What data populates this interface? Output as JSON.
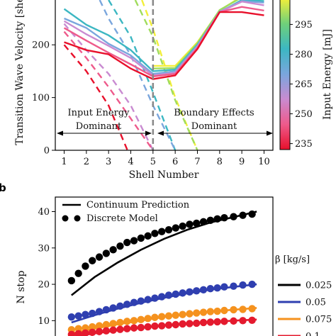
{
  "panel_b_label": "b",
  "chart_data": [
    {
      "type": "line",
      "panel": "a",
      "xlabel": "Shell Number",
      "ylabel": "Transition Wave Velocity [she",
      "x_ticks": [
        1,
        2,
        3,
        4,
        5,
        6,
        7,
        8,
        9,
        10
      ],
      "y_ticks": [
        0,
        100,
        200
      ],
      "xlim": [
        0.6,
        10.4
      ],
      "ylim": [
        0,
        285
      ],
      "divider_x": 5,
      "annotations": {
        "left": [
          "Input Energy",
          "Dominant"
        ],
        "right": [
          "Boundary Effects",
          "Dominant"
        ]
      },
      "colorbar": {
        "label": "Input Energy [mJ]",
        "ticks": [
          235,
          250,
          265,
          280,
          295
        ],
        "range": [
          232,
          308
        ],
        "stops": [
          "#e8102b",
          "#ee5a8b",
          "#c98bd1",
          "#7aa6dd",
          "#3cb7c2",
          "#6fd07a",
          "#f2ef3a"
        ]
      },
      "series_solid": [
        {
          "color": "#f2ef3a",
          "x": [
            5,
            6,
            7,
            8,
            9,
            10
          ],
          "y": [
            160,
            160,
            205,
            265,
            292,
            292
          ]
        },
        {
          "color": "#9fdc5c",
          "x": [
            5,
            6,
            7,
            8,
            9,
            10
          ],
          "y": [
            155,
            156,
            203,
            266,
            290,
            290
          ]
        },
        {
          "color": "#3cb7c2",
          "x": [
            1,
            2,
            3,
            4,
            5,
            6,
            7,
            8,
            9,
            10
          ],
          "y": [
            268,
            238,
            218,
            190,
            150,
            153,
            200,
            262,
            285,
            283
          ]
        },
        {
          "color": "#7aa6dd",
          "x": [
            1,
            2,
            3,
            4,
            5,
            6,
            7,
            8,
            9,
            10
          ],
          "y": [
            250,
            232,
            202,
            180,
            145,
            150,
            198,
            263,
            283,
            280
          ]
        },
        {
          "color": "#c98bd1",
          "x": [
            1,
            2,
            3,
            4,
            5,
            6,
            7,
            8,
            9,
            10
          ],
          "y": [
            245,
            220,
            198,
            175,
            142,
            147,
            196,
            262,
            282,
            275
          ]
        },
        {
          "color": "#ee5a8b",
          "x": [
            1,
            2,
            3,
            4,
            5,
            6,
            7,
            8,
            9,
            10
          ],
          "y": [
            232,
            208,
            185,
            163,
            140,
            145,
            194,
            262,
            272,
            265
          ]
        },
        {
          "color": "#e8102b",
          "x": [
            1,
            2,
            3,
            4,
            5,
            6,
            7,
            8,
            9,
            10
          ],
          "y": [
            205,
            190,
            182,
            155,
            135,
            142,
            192,
            262,
            262,
            256
          ]
        }
      ],
      "series_dashed": [
        {
          "color": "#f2ef3a",
          "x": [
            4.5,
            5,
            6,
            7
          ],
          "y": [
            285,
            230,
            100,
            0
          ]
        },
        {
          "color": "#9fdc5c",
          "x": [
            4.2,
            5,
            6,
            7
          ],
          "y": [
            285,
            215,
            95,
            0
          ]
        },
        {
          "color": "#3cb7c2",
          "x": [
            3,
            4,
            5,
            6
          ],
          "y": [
            285,
            215,
            110,
            0
          ]
        },
        {
          "color": "#7aa6dd",
          "x": [
            2.6,
            3,
            4,
            5,
            6
          ],
          "y": [
            285,
            250,
            180,
            85,
            0
          ]
        },
        {
          "color": "#c98bd1",
          "x": [
            1,
            2,
            3,
            4,
            5
          ],
          "y": [
            240,
            190,
            145,
            85,
            0
          ]
        },
        {
          "color": "#ee5a8b",
          "x": [
            1,
            2,
            3,
            4,
            5
          ],
          "y": [
            225,
            175,
            120,
            60,
            0
          ]
        },
        {
          "color": "#e8102b",
          "x": [
            1,
            2,
            3,
            3.85,
            4
          ],
          "y": [
            200,
            150,
            85,
            0,
            0
          ]
        }
      ]
    },
    {
      "type": "scatter",
      "panel": "b",
      "ylabel": "N stop",
      "y_ticks": [
        10,
        20,
        30,
        40
      ],
      "ylim": [
        5,
        44
      ],
      "xlim": [
        0.3,
        9.7
      ],
      "legend_main": [
        {
          "label": "Continuum Prediction",
          "style": "line"
        },
        {
          "label": "Discrete Model",
          "style": "dots"
        }
      ],
      "legend_beta_title": "β [kg/s]",
      "series": [
        {
          "name": "0.025",
          "color": "#000000",
          "points_x": [
            1,
            1.3,
            1.6,
            1.9,
            2.2,
            2.5,
            2.8,
            3.1,
            3.4,
            3.7,
            4.0,
            4.3,
            4.6,
            4.9,
            5.2,
            5.5,
            5.8,
            6.1,
            6.4,
            6.7,
            7.0,
            7.3,
            7.6,
            8.0,
            8.4,
            8.8
          ],
          "points_y": [
            21,
            23,
            25,
            26.5,
            27.5,
            28.5,
            29.5,
            30.5,
            31.5,
            32,
            32.7,
            33.3,
            34,
            34.5,
            35,
            35.5,
            36,
            36.5,
            36.8,
            37.2,
            37.6,
            38,
            38.3,
            38.6,
            39,
            39.3
          ],
          "curve_x": [
            1,
            2,
            3,
            4,
            5,
            6,
            7,
            8,
            9
          ],
          "curve_y": [
            17,
            22,
            26,
            29.5,
            32.5,
            35,
            37,
            38.5,
            40
          ]
        },
        {
          "name": "0.05",
          "color": "#2f3fb0",
          "points_x": [
            1,
            1.3,
            1.6,
            1.9,
            2.2,
            2.5,
            2.8,
            3.1,
            3.4,
            3.7,
            4.0,
            4.3,
            4.6,
            4.9,
            5.2,
            5.5,
            5.8,
            6.1,
            6.4,
            6.7,
            7.0,
            7.3,
            7.6,
            8.0,
            8.4,
            8.8
          ],
          "points_y": [
            11,
            11.3,
            11.7,
            12,
            12.5,
            13,
            13.5,
            14,
            14.5,
            15,
            15.4,
            15.8,
            16.2,
            16.6,
            17,
            17.3,
            17.6,
            17.9,
            18.2,
            18.5,
            18.8,
            19,
            19.3,
            19.5,
            19.8,
            20
          ],
          "curve_x": [
            1,
            2,
            3,
            4,
            5,
            6,
            7,
            8,
            9
          ],
          "curve_y": [
            9.5,
            11.5,
            13.3,
            14.9,
            16.3,
            17.5,
            18.5,
            19.3,
            20
          ]
        },
        {
          "name": "0.075",
          "color": "#f5921e",
          "points_x": [
            1,
            1.3,
            1.6,
            1.9,
            2.2,
            2.5,
            2.8,
            3.1,
            3.4,
            3.7,
            4.0,
            4.3,
            4.6,
            4.9,
            5.2,
            5.5,
            5.8,
            6.1,
            6.4,
            6.7,
            7.0,
            7.3,
            7.6,
            8.0,
            8.4,
            8.8
          ],
          "points_y": [
            7.5,
            7.8,
            8,
            8.3,
            8.6,
            8.9,
            9.2,
            9.5,
            9.8,
            10,
            10.3,
            10.6,
            10.9,
            11.1,
            11.3,
            11.5,
            11.7,
            11.9,
            12.1,
            12.3,
            12.5,
            12.6,
            12.8,
            13,
            13.1,
            13.3
          ],
          "curve_x": [
            1,
            2,
            3,
            4,
            5,
            6,
            7,
            8,
            9
          ],
          "curve_y": [
            6.5,
            7.8,
            9,
            10,
            11,
            11.8,
            12.5,
            13,
            13.5
          ]
        },
        {
          "name": "0.1",
          "color": "#e41a2e",
          "points_x": [
            1,
            1.3,
            1.6,
            1.9,
            2.2,
            2.5,
            2.8,
            3.1,
            3.4,
            3.7,
            4.0,
            4.3,
            4.6,
            4.9,
            5.2,
            5.5,
            5.8,
            6.1,
            6.4,
            6.7,
            7.0,
            7.3,
            7.6,
            8.0,
            8.4,
            8.8
          ],
          "points_y": [
            6.2,
            6.4,
            6.6,
            6.8,
            7,
            7.2,
            7.4,
            7.6,
            7.8,
            8,
            8.1,
            8.3,
            8.5,
            8.6,
            8.8,
            8.9,
            9.1,
            9.2,
            9.3,
            9.5,
            9.6,
            9.7,
            9.8,
            9.9,
            10,
            10.1
          ],
          "curve_x": [
            1,
            2,
            3,
            4,
            5,
            6,
            7,
            8,
            9
          ],
          "curve_y": [
            5.5,
            6.5,
            7.3,
            8,
            8.7,
            9.2,
            9.6,
            10,
            10.3
          ]
        }
      ]
    }
  ]
}
